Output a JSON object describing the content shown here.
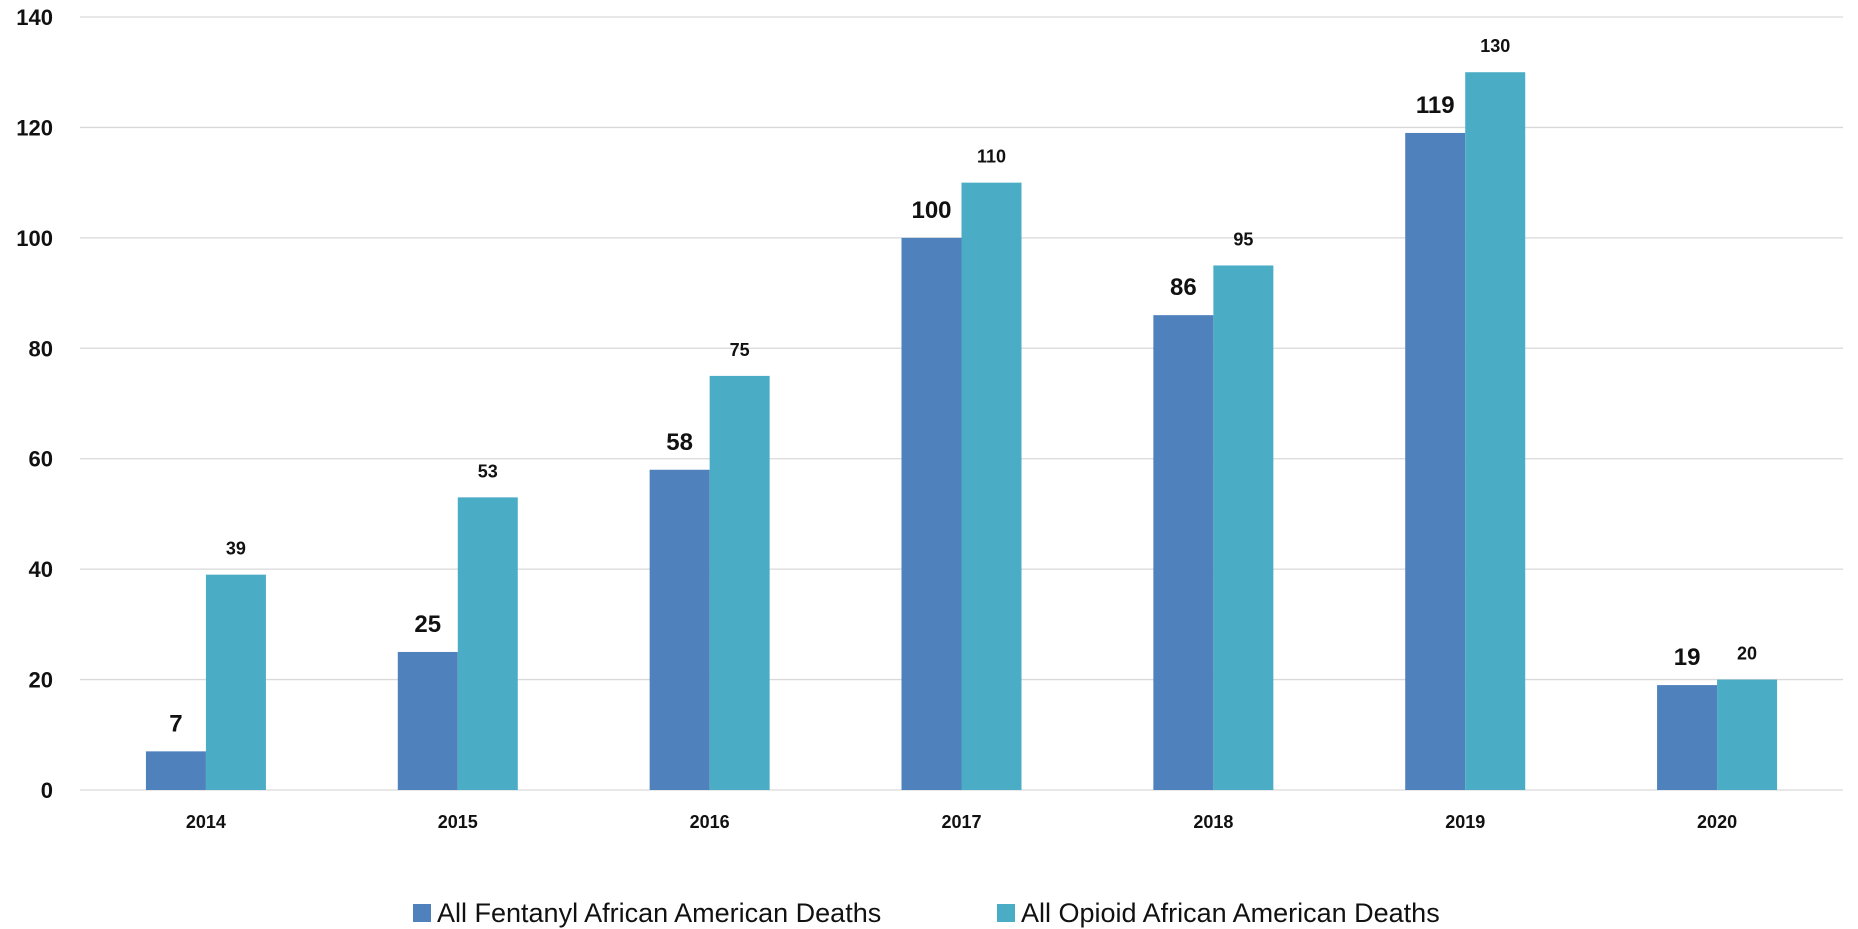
{
  "chart_data": {
    "type": "bar",
    "categories": [
      "2014",
      "2015",
      "2016",
      "2017",
      "2018",
      "2019",
      "2020"
    ],
    "series": [
      {
        "name": "All Fentanyl African American Deaths",
        "values": [
          7,
          25,
          58,
          100,
          86,
          119,
          19
        ],
        "color": "#4f81bd"
      },
      {
        "name": "All Opioid African American Deaths",
        "values": [
          39,
          53,
          75,
          110,
          95,
          130,
          20
        ],
        "color": "#4bacc6"
      }
    ],
    "yticks": [
      "0",
      "20",
      "40",
      "60",
      "80",
      "100",
      "120",
      "140"
    ],
    "ylim": [
      0,
      140
    ],
    "grid": true,
    "legend_position": "bottom",
    "gridline_color": "#d9d9d9"
  }
}
